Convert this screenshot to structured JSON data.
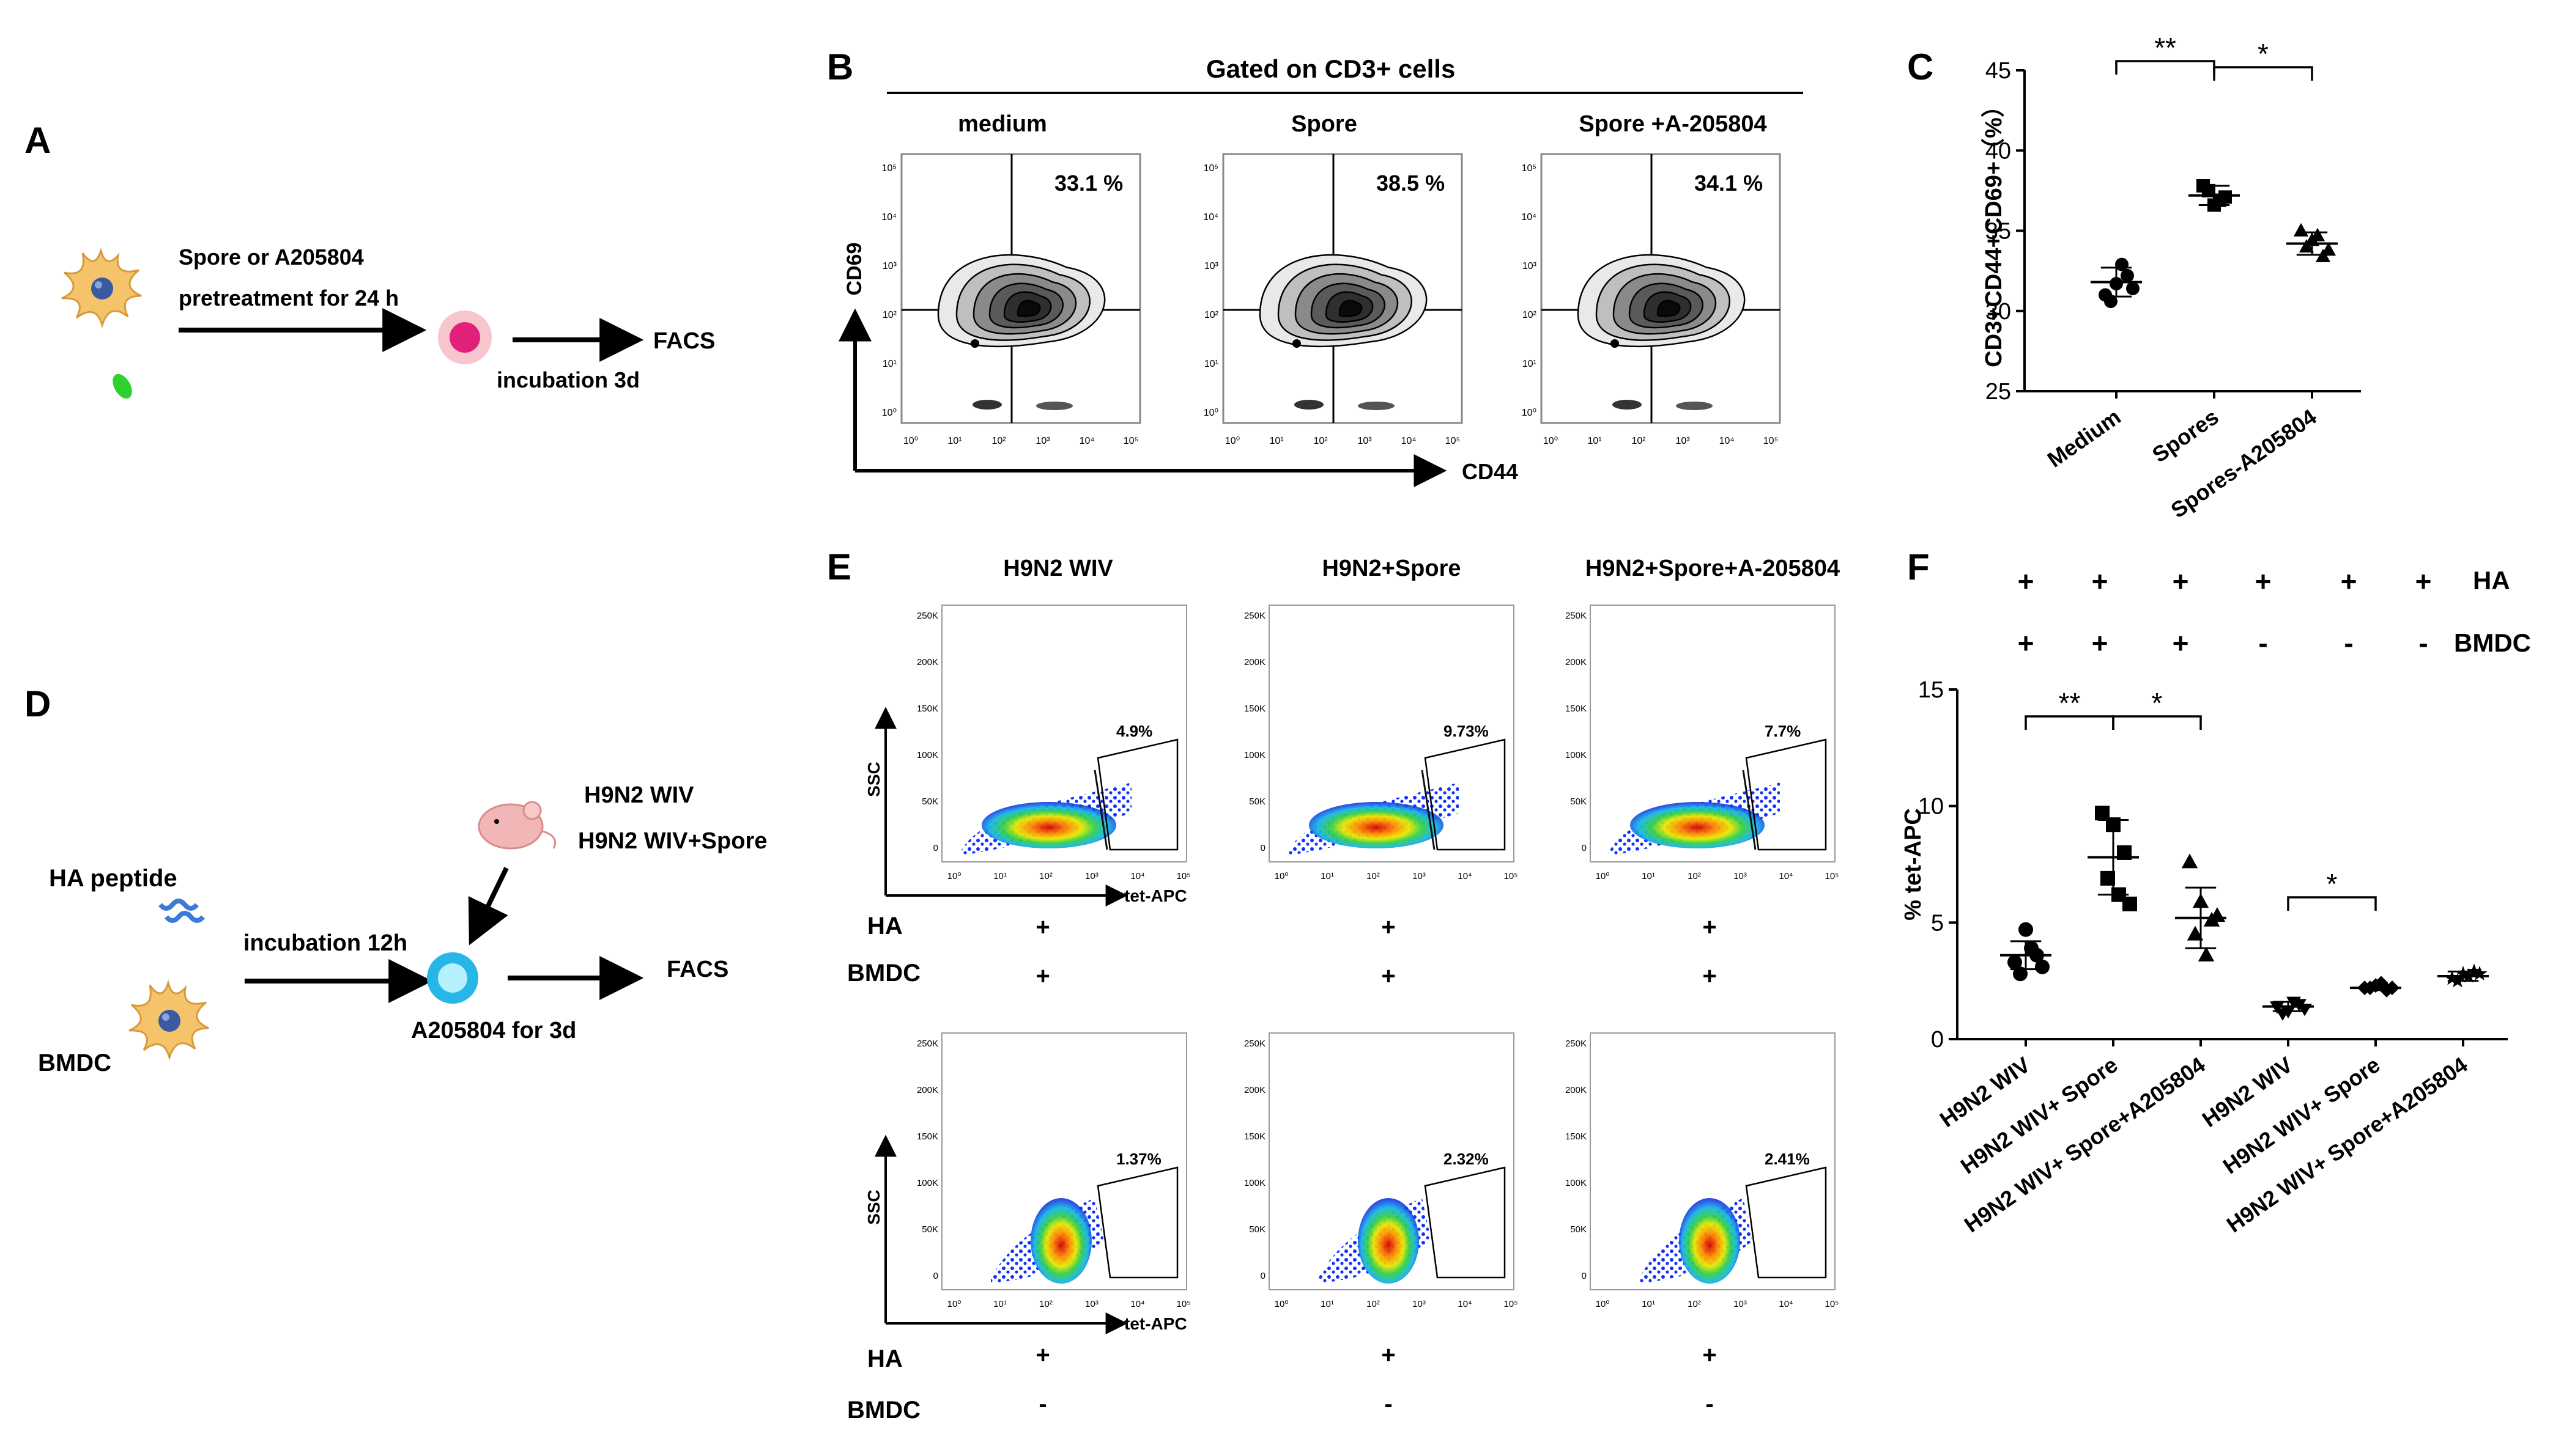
{
  "panels": {
    "A": {
      "letter": "A",
      "arrow_label_1": "Spore or A205804",
      "arrow_label_2": "pretreatment for 24 h",
      "arrow_label_3": "incubation 3d",
      "facs": "FACS"
    },
    "B": {
      "letter": "B",
      "header": "Gated on CD3+ cells",
      "x_label": "CD44",
      "y_label": "CD69",
      "plots": [
        {
          "title": "medium",
          "percent": "33.1 %"
        },
        {
          "title": "Spore",
          "percent": "38.5 %"
        },
        {
          "title": "Spore +A-205804",
          "percent": "34.1 %"
        }
      ],
      "tick_labels": [
        "10⁰",
        "10¹",
        "10²",
        "10³",
        "10⁴",
        "10⁵"
      ]
    },
    "D": {
      "letter": "D",
      "ha_peptide": "HA peptide",
      "bmdc": "BMDC",
      "incubation": "incubation 12h",
      "virus_1": "H9N2 WIV",
      "virus_2": "H9N2 WIV+Spore",
      "a205804": "A205804 for 3d",
      "facs": "FACS"
    },
    "E": {
      "letter": "E",
      "x_label": "tet-APC",
      "y_label": "SSC",
      "row_label_ha": "HA",
      "row_label_bmdc": "BMDC",
      "y_ticks": [
        "250K",
        "200K",
        "150K",
        "100K",
        "50K",
        "0"
      ],
      "x_ticks": [
        "10⁰",
        "10¹",
        "10²",
        "10³",
        "10⁴",
        "10⁵"
      ],
      "columns": [
        "H9N2 WIV",
        "H9N2+Spore",
        "H9N2+Spore+A-205804"
      ],
      "top_percents": [
        "4.9%",
        "9.73%",
        "7.7%"
      ],
      "bottom_percents": [
        "1.37%",
        "2.32%",
        "2.41%"
      ],
      "top_ha": [
        "+",
        "+",
        "+"
      ],
      "top_bmdc": [
        "+",
        "+",
        "+"
      ],
      "bottom_ha": [
        "+",
        "+",
        "+"
      ],
      "bottom_bmdc": [
        "-",
        "-",
        "-"
      ]
    },
    "F": {
      "letter": "F",
      "ha_label": "HA",
      "bmdc_label": "BMDC",
      "ha_row": [
        "+",
        "+",
        "+",
        "+",
        "+",
        "+"
      ],
      "bmdc_row": [
        "+",
        "+",
        "+",
        "-",
        "-",
        "-"
      ]
    }
  },
  "chart_data": [
    {
      "id": "C",
      "type": "scatter",
      "title": "",
      "xlabel": "",
      "ylabel": "CD3+CD44+CD69+（%）",
      "ylim": [
        25,
        45
      ],
      "yticks": [
        25,
        30,
        35,
        40,
        45
      ],
      "categories": [
        "Medium",
        "Spores",
        "Spores-A205804"
      ],
      "markers": [
        "circle",
        "square",
        "triangle"
      ],
      "points": [
        [
          31.0,
          31.7,
          32.2,
          30.6,
          32.9,
          31.4
        ],
        [
          37.8,
          36.6,
          37.1,
          37.5,
          36.9
        ],
        [
          35.0,
          34.4,
          33.4,
          34.0,
          34.7,
          33.8
        ]
      ],
      "means": [
        31.8,
        37.2,
        34.2
      ],
      "sd": [
        0.9,
        0.6,
        0.7
      ],
      "significance": [
        {
          "from": 0,
          "to": 1,
          "label": "**"
        },
        {
          "from": 1,
          "to": 2,
          "label": "*"
        }
      ]
    },
    {
      "id": "F",
      "type": "scatter",
      "title": "",
      "xlabel": "",
      "ylabel": "% tet-APC",
      "ylim": [
        0,
        15
      ],
      "yticks": [
        0,
        5,
        10,
        15
      ],
      "categories": [
        "H9N2 WIV",
        "H9N2 WIV+ Spore",
        "H9N2 WIV+ Spore+A205804",
        "H9N2 WIV",
        "H9N2 WIV+ Spore",
        "H9N2 WIV+ Spore+A205804"
      ],
      "markers": [
        "circle",
        "square",
        "triangle",
        "triangle-down",
        "diamond",
        "star"
      ],
      "points": [
        [
          3.3,
          4.7,
          3.6,
          2.8,
          3.9,
          3.1
        ],
        [
          9.7,
          9.2,
          8.0,
          6.9,
          6.2,
          5.8
        ],
        [
          7.6,
          5.9,
          5.1,
          4.5,
          3.6,
          5.3
        ],
        [
          1.4,
          1.2,
          1.5,
          1.1,
          1.6,
          1.3
        ],
        [
          2.2,
          2.3,
          2.1,
          2.2,
          2.4,
          2.2
        ],
        [
          2.6,
          2.8,
          2.9,
          2.5,
          2.7,
          2.8
        ]
      ],
      "means": [
        3.6,
        7.8,
        5.2,
        1.4,
        2.2,
        2.7
      ],
      "sd": [
        0.6,
        1.6,
        1.3,
        0.2,
        0.1,
        0.2
      ],
      "significance": [
        {
          "from": 0,
          "to": 1,
          "label": "**"
        },
        {
          "from": 1,
          "to": 2,
          "label": "*"
        },
        {
          "from": 3,
          "to": 4,
          "label": "*"
        }
      ]
    }
  ],
  "colors": {
    "green_spore": "#2ed12e",
    "cell_body": "#f4c36a",
    "nucleus": "#3a5aa0",
    "pink_cell": "#e73c7c",
    "cyan_cell": "#27b6e8",
    "mouse": "#f2b6b6"
  }
}
